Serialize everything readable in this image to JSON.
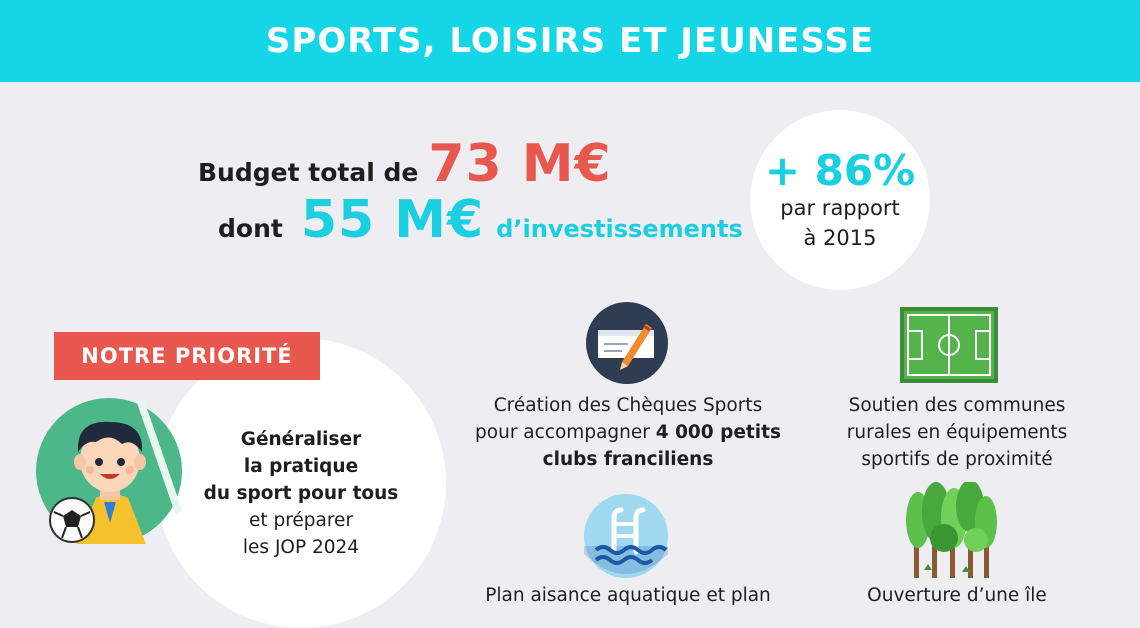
{
  "header": {
    "title": "SPORTS, LOISIRS ET JEUNESSE"
  },
  "budget": {
    "line1_label": "Budget total de",
    "line1_value": "73 M€",
    "line2_label": "dont",
    "line2_value": "55 M€",
    "line2_suffix": "d’investissements"
  },
  "growth": {
    "value": "+ 86%",
    "line1": "par rapport",
    "line2": "à 2015"
  },
  "priority": {
    "badge": "NOTRE PRIORITÉ",
    "line1": "Généraliser",
    "line2": "la pratique",
    "line3": "du sport pour tous",
    "line4": "et préparer",
    "line5": "les JOP 2024"
  },
  "features": {
    "cheques": {
      "line1": "Création des Chèques Sports",
      "line2_pre": "pour accompagner ",
      "line2_bold": "4 000 petits",
      "line3": "clubs franciliens"
    },
    "communes": {
      "line1": "Soutien des communes",
      "line2": "rurales en équipements",
      "line3": "sportifs de proximité"
    },
    "aquatique": {
      "line1": "Plan aisance aquatique et plan"
    },
    "ile": {
      "line1": "Ouverture d’une île"
    }
  },
  "colors": {
    "header": "#14d6e6",
    "accent_red": "#e8584f",
    "accent_cyan": "#19cfe0",
    "background": "#eeedf2"
  },
  "icons": [
    "cheque-pen-icon",
    "football-field-icon",
    "swimming-pool-ladder-icon",
    "forest-trees-icon",
    "kid-soccer-player-icon"
  ]
}
